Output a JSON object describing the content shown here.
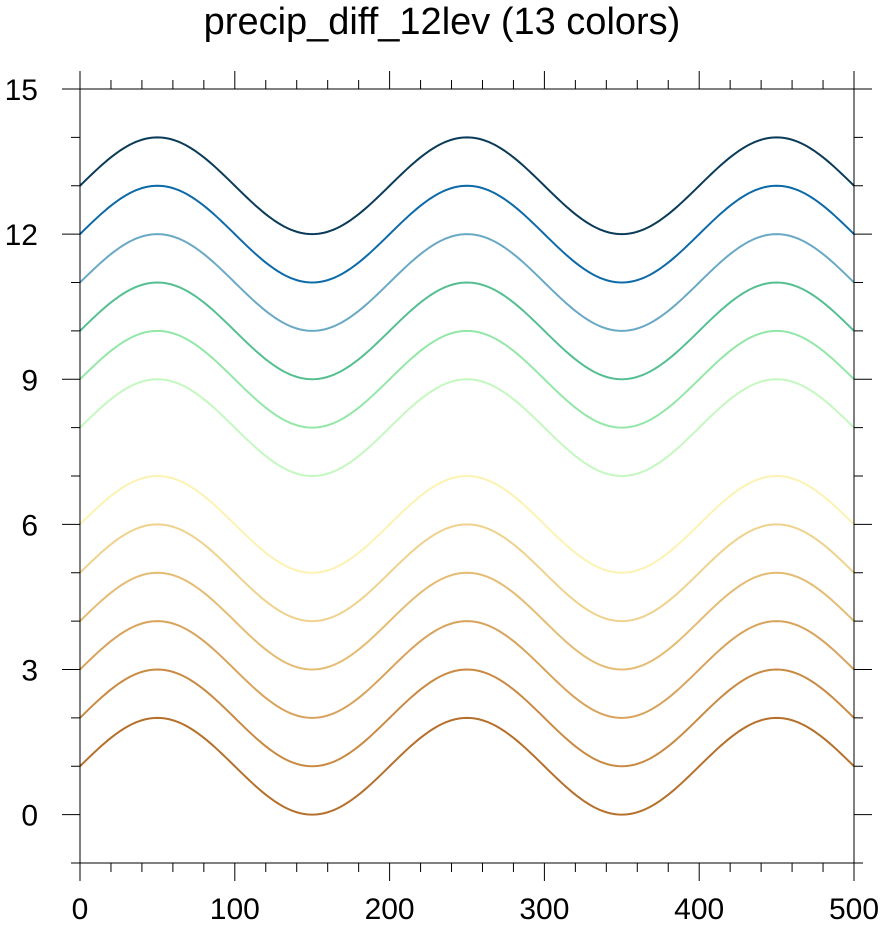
{
  "chart_data": {
    "type": "line",
    "title": "precip_diff_12lev (13 colors)",
    "xlabel": "",
    "ylabel": "",
    "xlim": [
      0,
      500
    ],
    "ylim": [
      -1,
      15
    ],
    "x_ticks": [
      0,
      100,
      200,
      300,
      400,
      500
    ],
    "y_ticks": [
      0,
      3,
      6,
      9,
      12,
      15
    ],
    "grid": false,
    "curve": "y = offset + sin(2*pi*x/200)",
    "series": [
      {
        "offset": 1,
        "color": "#b5702c"
      },
      {
        "offset": 2,
        "color": "#c98a43"
      },
      {
        "offset": 3,
        "color": "#d8a35c"
      },
      {
        "offset": 4,
        "color": "#e5bc74"
      },
      {
        "offset": 5,
        "color": "#efd28e"
      },
      {
        "offset": 6,
        "color": "#fcf2b2"
      },
      {
        "offset": 8,
        "color": "#c5f8c0"
      },
      {
        "offset": 9,
        "color": "#94e7a8"
      },
      {
        "offset": 10,
        "color": "#56bf92"
      },
      {
        "offset": 11,
        "color": "#6aa9c5"
      },
      {
        "offset": 12,
        "color": "#0d6aa8"
      },
      {
        "offset": 13,
        "color": "#0a3b58"
      }
    ]
  }
}
